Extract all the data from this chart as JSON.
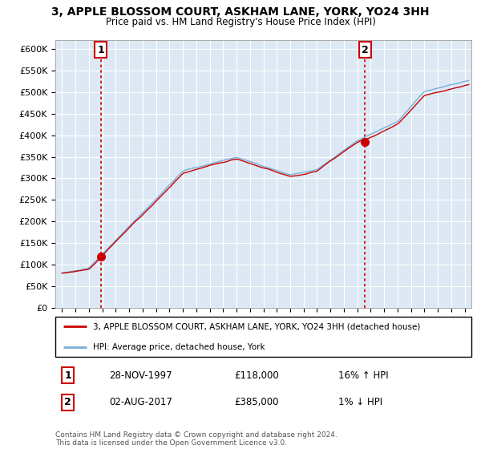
{
  "title": "3, APPLE BLOSSOM COURT, ASKHAM LANE, YORK, YO24 3HH",
  "subtitle": "Price paid vs. HM Land Registry's House Price Index (HPI)",
  "ylim": [
    0,
    620000
  ],
  "yticks": [
    0,
    50000,
    100000,
    150000,
    200000,
    250000,
    300000,
    350000,
    400000,
    450000,
    500000,
    550000,
    600000
  ],
  "ytick_labels": [
    "£0",
    "£50K",
    "£100K",
    "£150K",
    "£200K",
    "£250K",
    "£300K",
    "£350K",
    "£400K",
    "£450K",
    "£500K",
    "£550K",
    "£600K"
  ],
  "background_color": "#ffffff",
  "plot_bg_color": "#dce9f5",
  "grid_color": "#ffffff",
  "sale1_x": 1997.9,
  "sale1_y": 118000,
  "sale1_label": "1",
  "sale1_date": "28-NOV-1997",
  "sale1_price": "£118,000",
  "sale1_hpi": "16% ↑ HPI",
  "sale2_x": 2017.58,
  "sale2_y": 385000,
  "sale2_label": "2",
  "sale2_date": "02-AUG-2017",
  "sale2_price": "£385,000",
  "sale2_hpi": "1% ↓ HPI",
  "legend_line1": "3, APPLE BLOSSOM COURT, ASKHAM LANE, YORK, YO24 3HH (detached house)",
  "legend_line2": "HPI: Average price, detached house, York",
  "footer1": "Contains HM Land Registry data © Crown copyright and database right 2024.",
  "footer2": "This data is licensed under the Open Government Licence v3.0.",
  "line_color_red": "#cc0000",
  "line_color_blue": "#7aaed6",
  "dot_color": "#cc0000",
  "vline_color": "#cc0000",
  "xmin": 1994.5,
  "xmax": 2025.5
}
